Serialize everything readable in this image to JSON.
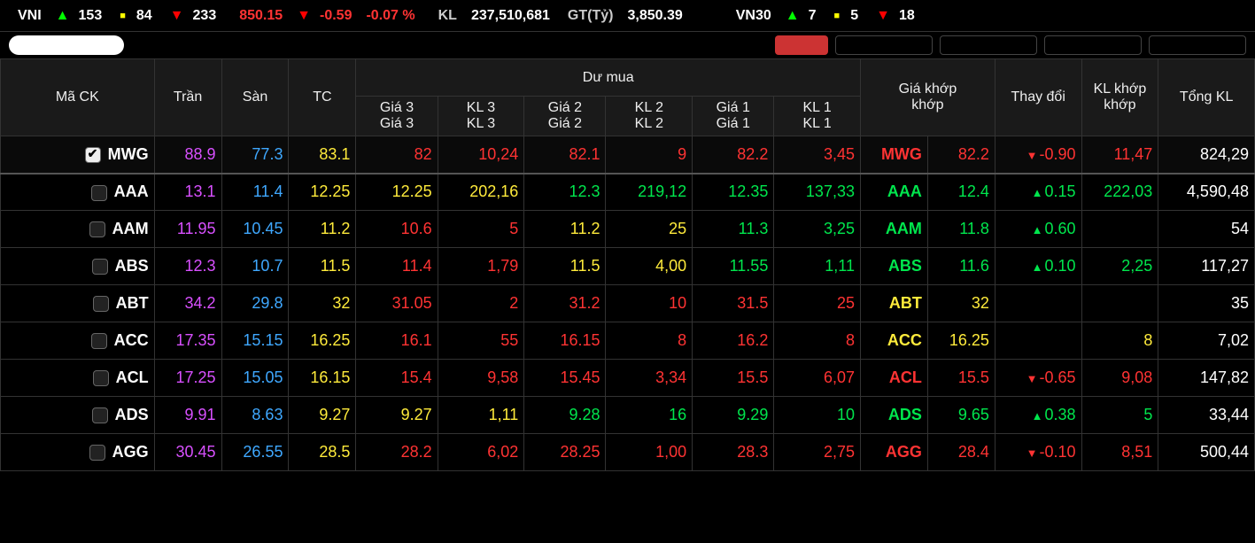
{
  "ticker": {
    "index1_name": "VNI",
    "index1_up": "153",
    "index1_flat": "84",
    "index1_down": "233",
    "index1_val": "850.15",
    "index1_chg": "-0.59",
    "index1_pct": "-0.07 %",
    "kl_label": "KL",
    "kl_val": "237,510,681",
    "gt_label": "GT(Tỷ)",
    "gt_val": "3,850.39",
    "index2_name": "VN30",
    "index2_up": "7",
    "index2_flat": "5",
    "index2_down": "18"
  },
  "headers": {
    "mack": "Mã CK",
    "tran": "Trần",
    "san": "Sàn",
    "tc": "TC",
    "dumua": "Dư mua",
    "gia3": "Giá 3",
    "kl3": "KL 3",
    "gia3b": "Giá 3",
    "kl3b": "KL 3",
    "gia2": "Giá 2",
    "kl2": "KL 2",
    "gia2b": "Giá 2",
    "kl2b": "KL 2",
    "gia1": "Giá 1",
    "kl1": "KL 1",
    "gia1b": "Giá 1",
    "kl1b": "KL 1",
    "giakhoplabel": "Giá khớp",
    "khop": "khớp",
    "thaydoi": "Thay đổi",
    "klkhoplabel": "KL khớp",
    "tongkl": "Tổng KL"
  },
  "rows": [
    {
      "checked": true,
      "sym": "MWG",
      "tran": "88.9",
      "san": "77.3",
      "tc": "83.1",
      "g3": "82",
      "g3c": "c-dn",
      "k3": "10,24",
      "k3c": "c-dn",
      "g2": "82.1",
      "g2c": "c-dn",
      "k2": "9",
      "k2c": "c-dn",
      "g1": "82.2",
      "g1c": "c-dn",
      "k1": "3,45",
      "k1c": "c-dn",
      "sym2": "MWG",
      "sym2c": "c-dn",
      "khop": "82.2",
      "khopc": "c-dn",
      "chg": "-0.90",
      "chgc": "c-dn",
      "chgarrow": "▼",
      "klk": "11,47",
      "klkc": "c-dn",
      "tong": "824,29"
    },
    {
      "checked": false,
      "sym": "AAA",
      "tran": "13.1",
      "san": "11.4",
      "tc": "12.25",
      "g3": "12.25",
      "g3c": "c-ref",
      "k3": "202,16",
      "k3c": "c-ref",
      "g2": "12.3",
      "g2c": "c-up",
      "k2": "219,12",
      "k2c": "c-up",
      "g1": "12.35",
      "g1c": "c-up",
      "k1": "137,33",
      "k1c": "c-up",
      "sym2": "AAA",
      "sym2c": "c-up",
      "khop": "12.4",
      "khopc": "c-up",
      "chg": "0.15",
      "chgc": "c-up",
      "chgarrow": "▲",
      "klk": "222,03",
      "klkc": "c-up",
      "tong": "4,590,48"
    },
    {
      "checked": false,
      "sym": "AAM",
      "tran": "11.95",
      "san": "10.45",
      "tc": "11.2",
      "g3": "10.6",
      "g3c": "c-dn",
      "k3": "5",
      "k3c": "c-dn",
      "g2": "11.2",
      "g2c": "c-ref",
      "k2": "25",
      "k2c": "c-ref",
      "g1": "11.3",
      "g1c": "c-up",
      "k1": "3,25",
      "k1c": "c-up",
      "sym2": "AAM",
      "sym2c": "c-up",
      "khop": "11.8",
      "khopc": "c-up",
      "chg": "0.60",
      "chgc": "c-up",
      "chgarrow": "▲",
      "klk": "",
      "klkc": "",
      "tong": "54"
    },
    {
      "checked": false,
      "sym": "ABS",
      "tran": "12.3",
      "san": "10.7",
      "tc": "11.5",
      "g3": "11.4",
      "g3c": "c-dn",
      "k3": "1,79",
      "k3c": "c-dn",
      "g2": "11.5",
      "g2c": "c-ref",
      "k2": "4,00",
      "k2c": "c-ref",
      "g1": "11.55",
      "g1c": "c-up",
      "k1": "1,11",
      "k1c": "c-up",
      "sym2": "ABS",
      "sym2c": "c-up",
      "khop": "11.6",
      "khopc": "c-up",
      "chg": "0.10",
      "chgc": "c-up",
      "chgarrow": "▲",
      "klk": "2,25",
      "klkc": "c-up",
      "tong": "117,27"
    },
    {
      "checked": false,
      "sym": "ABT",
      "tran": "34.2",
      "san": "29.8",
      "tc": "32",
      "g3": "31.05",
      "g3c": "c-dn",
      "k3": "2",
      "k3c": "c-dn",
      "g2": "31.2",
      "g2c": "c-dn",
      "k2": "10",
      "k2c": "c-dn",
      "g1": "31.5",
      "g1c": "c-dn",
      "k1": "25",
      "k1c": "c-dn",
      "sym2": "ABT",
      "sym2c": "c-ref",
      "khop": "32",
      "khopc": "c-ref",
      "chg": "",
      "chgc": "",
      "chgarrow": "",
      "klk": "",
      "klkc": "",
      "tong": "35"
    },
    {
      "checked": false,
      "sym": "ACC",
      "tran": "17.35",
      "san": "15.15",
      "tc": "16.25",
      "g3": "16.1",
      "g3c": "c-dn",
      "k3": "55",
      "k3c": "c-dn",
      "g2": "16.15",
      "g2c": "c-dn",
      "k2": "8",
      "k2c": "c-dn",
      "g1": "16.2",
      "g1c": "c-dn",
      "k1": "8",
      "k1c": "c-dn",
      "sym2": "ACC",
      "sym2c": "c-ref",
      "khop": "16.25",
      "khopc": "c-ref",
      "chg": "",
      "chgc": "",
      "chgarrow": "",
      "klk": "8",
      "klkc": "c-ref",
      "tong": "7,02"
    },
    {
      "checked": false,
      "sym": "ACL",
      "tran": "17.25",
      "san": "15.05",
      "tc": "16.15",
      "g3": "15.4",
      "g3c": "c-dn",
      "k3": "9,58",
      "k3c": "c-dn",
      "g2": "15.45",
      "g2c": "c-dn",
      "k2": "3,34",
      "k2c": "c-dn",
      "g1": "15.5",
      "g1c": "c-dn",
      "k1": "6,07",
      "k1c": "c-dn",
      "sym2": "ACL",
      "sym2c": "c-dn",
      "khop": "15.5",
      "khopc": "c-dn",
      "chg": "-0.65",
      "chgc": "c-dn",
      "chgarrow": "▼",
      "klk": "9,08",
      "klkc": "c-dn",
      "tong": "147,82"
    },
    {
      "checked": false,
      "sym": "ADS",
      "tran": "9.91",
      "san": "8.63",
      "tc": "9.27",
      "g3": "9.27",
      "g3c": "c-ref",
      "k3": "1,11",
      "k3c": "c-ref",
      "g2": "9.28",
      "g2c": "c-up",
      "k2": "16",
      "k2c": "c-up",
      "g1": "9.29",
      "g1c": "c-up",
      "k1": "10",
      "k1c": "c-up",
      "sym2": "ADS",
      "sym2c": "c-up",
      "khop": "9.65",
      "khopc": "c-up",
      "chg": "0.38",
      "chgc": "c-up",
      "chgarrow": "▲",
      "klk": "5",
      "klkc": "c-up",
      "tong": "33,44"
    },
    {
      "checked": false,
      "sym": "AGG",
      "tran": "30.45",
      "san": "26.55",
      "tc": "28.5",
      "g3": "28.2",
      "g3c": "c-dn",
      "k3": "6,02",
      "k3c": "c-dn",
      "g2": "28.25",
      "g2c": "c-dn",
      "k2": "1,00",
      "k2c": "c-dn",
      "g1": "28.3",
      "g1c": "c-dn",
      "k1": "2,75",
      "k1c": "c-dn",
      "sym2": "AGG",
      "sym2c": "c-dn",
      "khop": "28.4",
      "khopc": "c-dn",
      "chg": "-0.10",
      "chgc": "c-dn",
      "chgarrow": "▼",
      "klk": "8,51",
      "klkc": "c-dn",
      "tong": "500,44"
    }
  ],
  "widths": {
    "mack": 160,
    "tran": 70,
    "san": 70,
    "tc": 70,
    "g": 85,
    "k": 90,
    "sym2": 70,
    "khop": 70,
    "chg": 90,
    "klk": 80,
    "tong": 100
  }
}
